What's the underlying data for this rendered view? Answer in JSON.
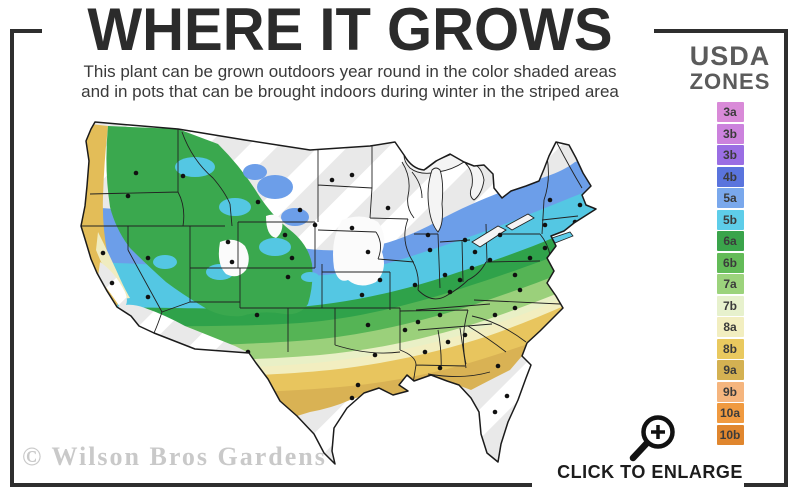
{
  "header": {
    "title": "WHERE IT GROWS",
    "subtitle_line1": "This plant can be grown outdoors year round in the color shaded areas",
    "subtitle_line2": "and in pots that can be brought indoors during winter in the striped area"
  },
  "legend": {
    "title_line1": "USDA",
    "title_line2": "ZONES",
    "zones": [
      {
        "label": "3a",
        "color": "#d98ad8"
      },
      {
        "label": "3b",
        "color": "#cc82dd"
      },
      {
        "label": "3b",
        "color": "#9a6ee3"
      },
      {
        "label": "4b",
        "color": "#5a74dd"
      },
      {
        "label": "5a",
        "color": "#7aa8ec"
      },
      {
        "label": "5b",
        "color": "#5ecde9"
      },
      {
        "label": "6a",
        "color": "#3aa44b"
      },
      {
        "label": "6b",
        "color": "#63bb58"
      },
      {
        "label": "7a",
        "color": "#9cd37c"
      },
      {
        "label": "7b",
        "color": "#e7f1cd"
      },
      {
        "label": "8a",
        "color": "#f2eec0"
      },
      {
        "label": "8b",
        "color": "#e9c95f"
      },
      {
        "label": "9a",
        "color": "#d4b152"
      },
      {
        "label": "9b",
        "color": "#f5b57e"
      },
      {
        "label": "10a",
        "color": "#f09a40"
      },
      {
        "label": "10b",
        "color": "#e0862e"
      }
    ]
  },
  "map": {
    "watermark": "© Wilson Bros Gardens",
    "striped_meaning": "indoor pots during winter",
    "stripe_base_color": "#e9e9e9"
  },
  "footer": {
    "enlarge_label": "CLICK TO ENLARGE"
  },
  "colors": {
    "frame": "#2e2e2e",
    "title": "#2b2b2b",
    "legend_title": "#5b5b5b"
  }
}
